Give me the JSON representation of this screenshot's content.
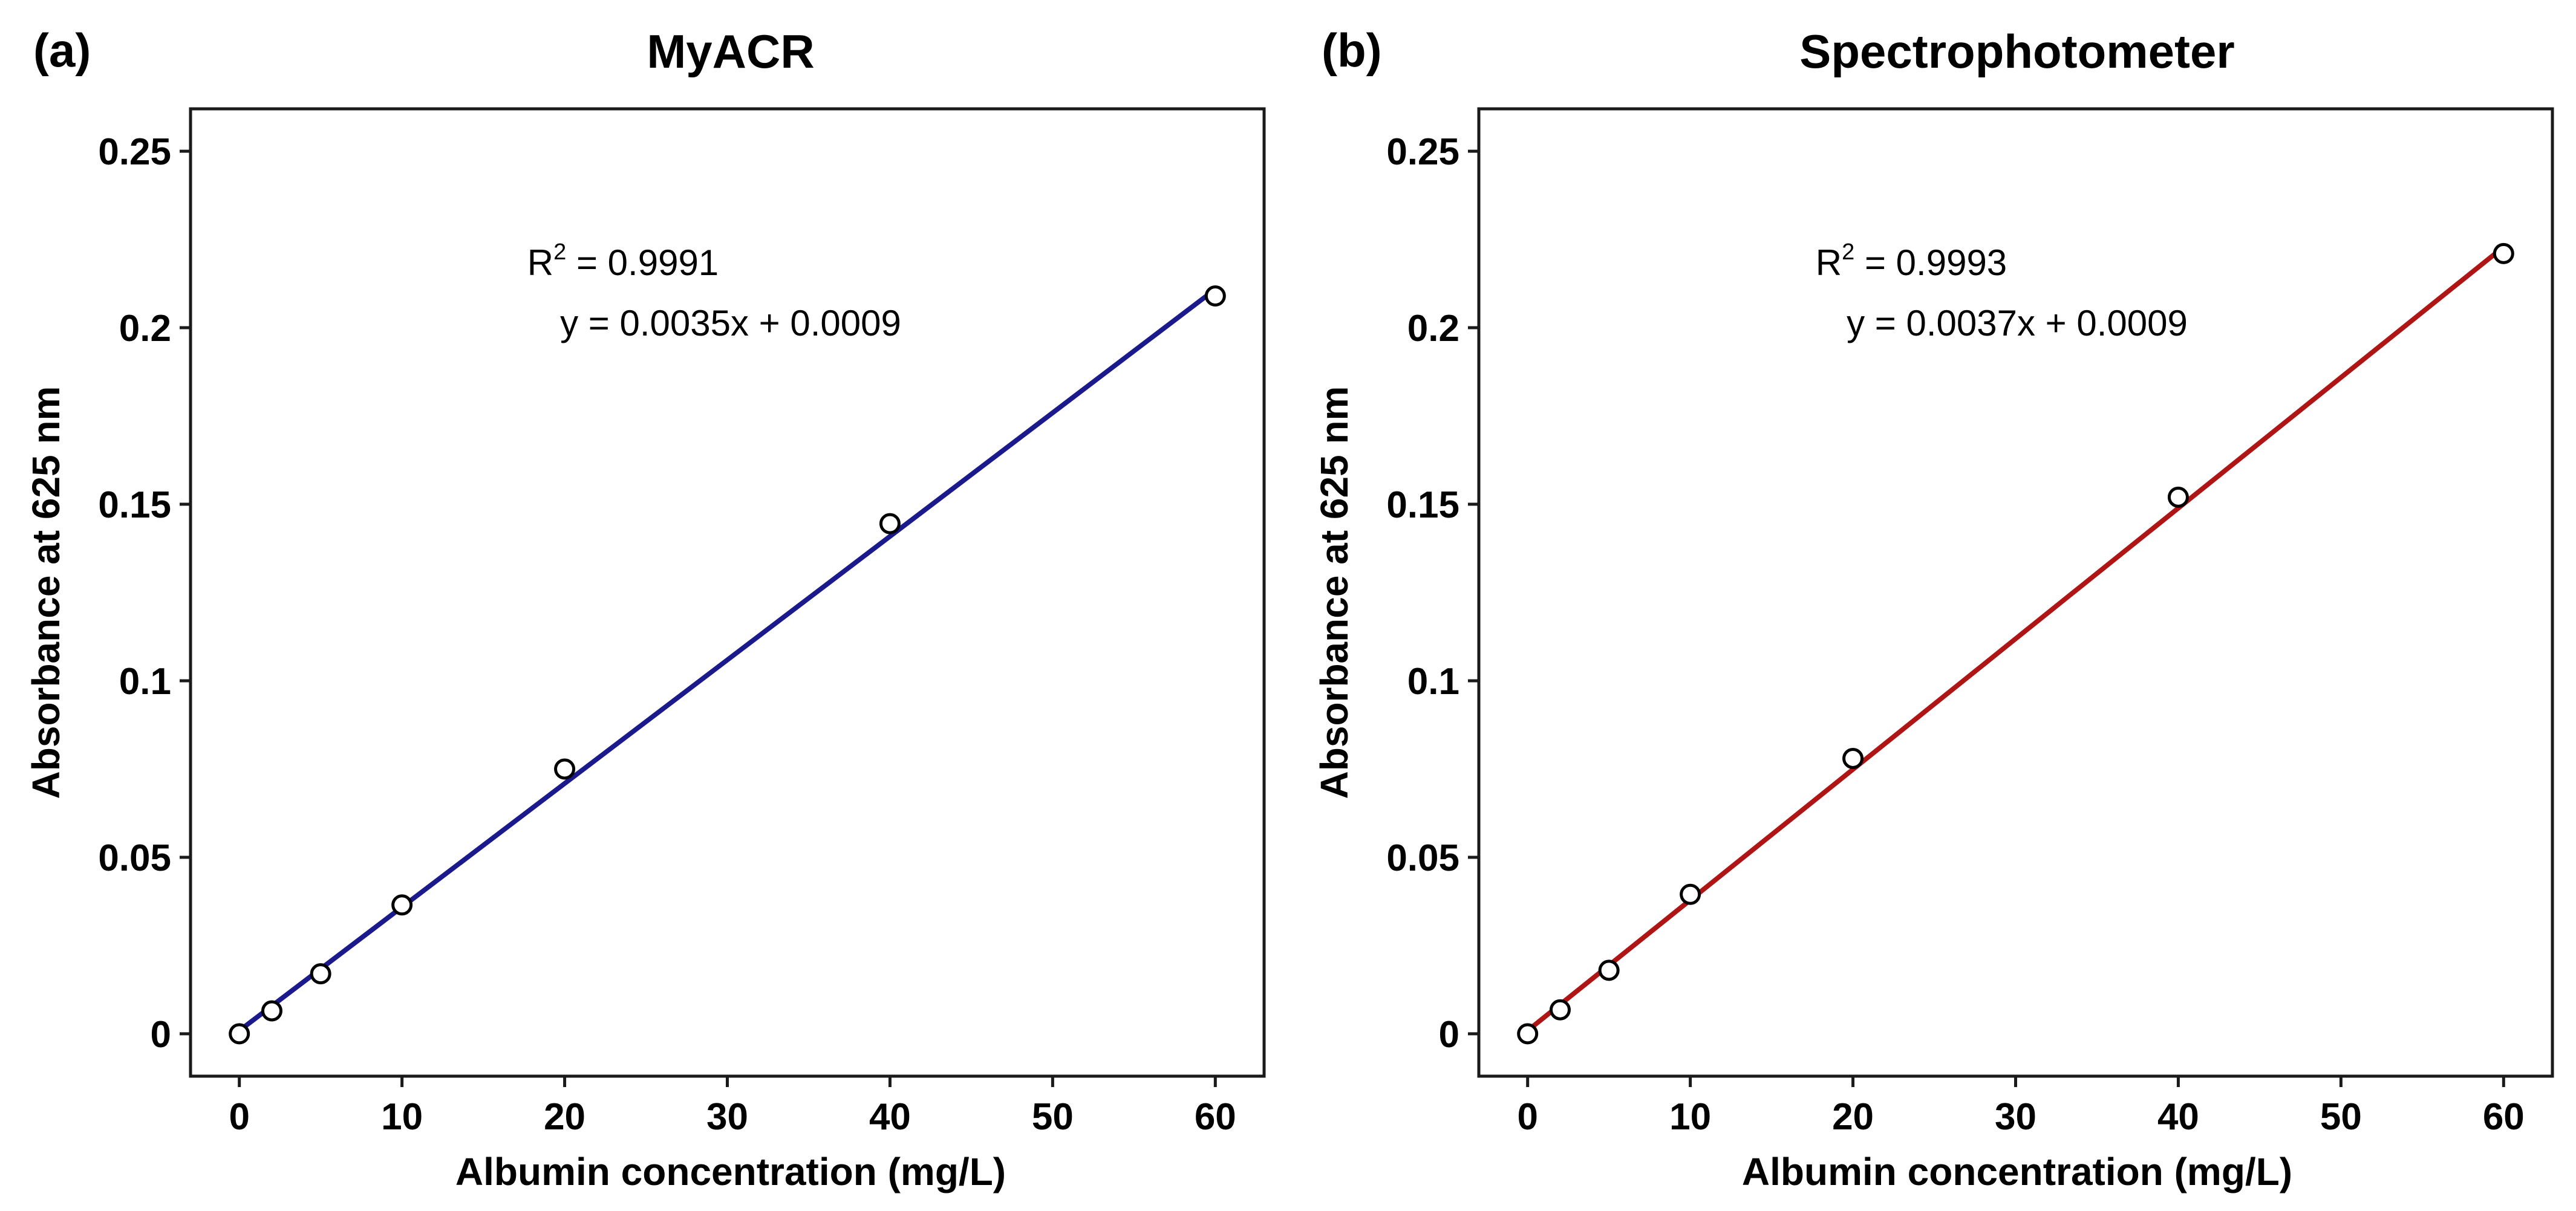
{
  "chart_data": [
    {
      "type": "scatter",
      "panel": "(a)",
      "title": "MyACR",
      "xlabel": "Albumin concentration (mg/L)",
      "ylabel": "Absorbance at 625 nm",
      "xlim": [
        -3,
        63
      ],
      "ylim": [
        -0.012,
        0.262
      ],
      "xticks": [
        0,
        10,
        20,
        30,
        40,
        50,
        60
      ],
      "yticks": [
        0,
        0.05,
        0.1,
        0.15,
        0.2,
        0.25
      ],
      "ytick_labels": [
        "0",
        "0.05",
        "0.1",
        "0.15",
        "0.2",
        "0.25"
      ],
      "grid": false,
      "x": [
        0,
        2,
        5,
        10,
        20,
        40,
        60
      ],
      "y": [
        0.0,
        0.0065,
        0.017,
        0.0365,
        0.075,
        0.1445,
        0.209
      ],
      "fit": {
        "slope": 0.0035,
        "intercept": 0.0009,
        "color": "#1a1a8c"
      },
      "annotation": {
        "r2_prefix": "R",
        "r2_sup": "2",
        "r2_value": " = 0.9991",
        "equation": "y = 0.0035x + 0.0009"
      }
    },
    {
      "type": "scatter",
      "panel": "(b)",
      "title": "Spectrophotometer",
      "xlabel": "Albumin concentration (mg/L)",
      "ylabel": "Absorbance at 625 nm",
      "xlim": [
        -3,
        63
      ],
      "ylim": [
        -0.012,
        0.262
      ],
      "xticks": [
        0,
        10,
        20,
        30,
        40,
        50,
        60
      ],
      "yticks": [
        0,
        0.05,
        0.1,
        0.15,
        0.2,
        0.25
      ],
      "ytick_labels": [
        "0",
        "0.05",
        "0.1",
        "0.15",
        "0.2",
        "0.25"
      ],
      "grid": false,
      "x": [
        0,
        2,
        5,
        10,
        20,
        40,
        60
      ],
      "y": [
        0.0,
        0.0068,
        0.018,
        0.0395,
        0.078,
        0.152,
        0.221
      ],
      "fit": {
        "slope": 0.0037,
        "intercept": 0.0009,
        "color": "#b01515"
      },
      "annotation": {
        "r2_prefix": "R",
        "r2_sup": "2",
        "r2_value": " = 0.9993",
        "equation": "y = 0.0037x + 0.0009"
      }
    }
  ]
}
